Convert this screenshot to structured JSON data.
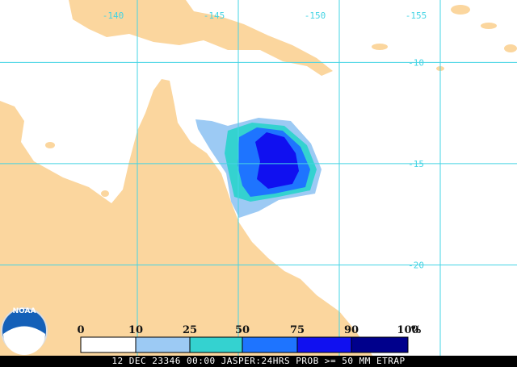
{
  "map": {
    "footer": "12 DEC 23346 00:00 JASPER:24HRS PROB >= 50 MM ETRAP",
    "logo_text": "NOAA",
    "land_color": "#fbd69e",
    "grid_color": "#44d4e4",
    "xlim": [
      -133.2,
      -158.8
    ],
    "ylim": [
      -6.92,
      -24.52
    ],
    "xticks": [
      -140,
      -145,
      -150,
      -155
    ],
    "yticks": [
      -10,
      -15,
      -20
    ],
    "legend": {
      "ticks": [
        0,
        10,
        25,
        50,
        75,
        90,
        100
      ],
      "unit": "%",
      "colors": [
        "#ffffff",
        "#9ccaf4",
        "#34d2d0",
        "#1e74ff",
        "#1010f0",
        "#00008c"
      ]
    }
  }
}
